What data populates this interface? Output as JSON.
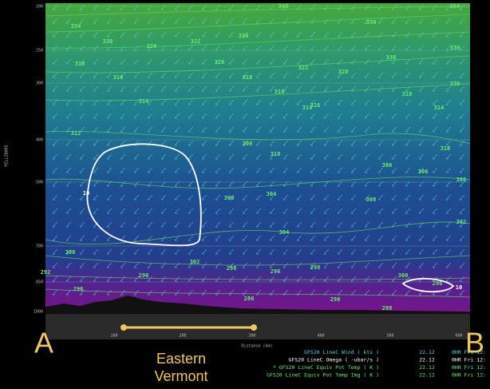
{
  "axes": {
    "y_title": "MILLIBARS",
    "y_ticks": [
      "200",
      "250",
      "300",
      "400",
      "500",
      "700",
      "850",
      "1000"
    ],
    "x_title": "Distance (km)",
    "x_ticks": [
      "100",
      "200",
      "300",
      "400",
      "500",
      "600"
    ]
  },
  "contour_labels": [
    "334",
    "330",
    "326",
    "322",
    "345",
    "334",
    "354",
    "350",
    "330",
    "338",
    "336",
    "318",
    "316",
    "318",
    "322",
    "326",
    "320",
    "314",
    "318",
    "316",
    "314",
    "318",
    "314",
    "312",
    "310",
    "306",
    "304",
    "310",
    "308",
    "306",
    "300",
    "304",
    "308",
    "306",
    "302",
    "300",
    "302",
    "298",
    "296",
    "298",
    "296",
    "292",
    "286",
    "288",
    "290",
    "296",
    "10",
    "10",
    "296",
    "300"
  ],
  "annotations": {
    "start": "A",
    "end": "B",
    "region": "Eastern Vermont"
  },
  "legend": [
    {
      "label": "GFS20 LineC Wind ( kts )",
      "time": "22.12",
      "run": "0HR Fri 12:"
    },
    {
      "label": "GFS20 LineC Omega ( -ubar/s )",
      "time": "22.12",
      "run": "0HR Fri 12:"
    },
    {
      "label": "* GFS20 LineC Equiv Pot Temp ( K )",
      "time": "22.12",
      "run": "0HR Fri 12:"
    },
    {
      "label": "GFS20 LineC Equiv Pot Temp Img ( K )",
      "time": "22.12",
      "run": "0HR Fri 12:"
    }
  ]
}
